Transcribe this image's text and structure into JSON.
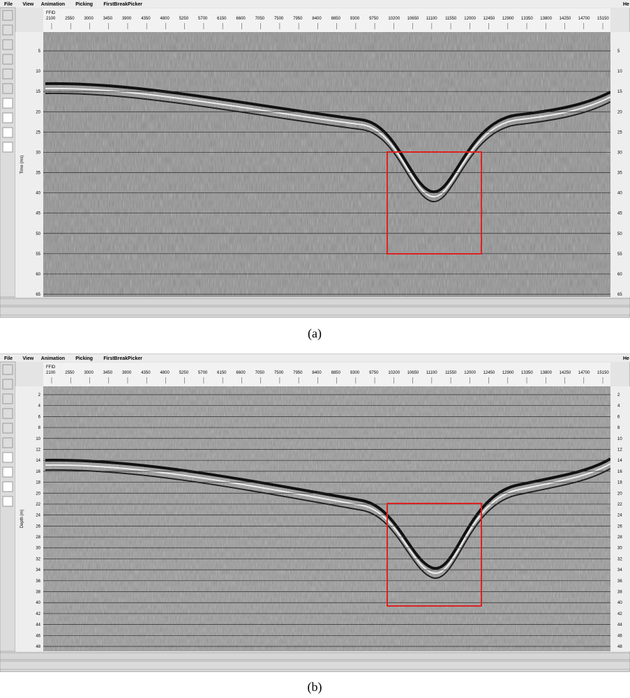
{
  "panels": [
    {
      "menu": [
        "File",
        "View",
        "Animation",
        "Picking",
        "FirstBreakPicker"
      ],
      "menu_right": "He",
      "x_axis_label": "FFID",
      "x_ticks": [
        "2100",
        "2550",
        "3000",
        "3450",
        "3900",
        "4350",
        "4800",
        "5250",
        "5700",
        "6150",
        "6600",
        "7050",
        "7500",
        "7950",
        "8400",
        "8850",
        "9300",
        "9750",
        "10200",
        "10650",
        "11100",
        "11550",
        "12000",
        "12450",
        "12900",
        "13350",
        "13800",
        "14250",
        "14700",
        "15150"
      ],
      "y_axis_label": "Time (ms)",
      "y_ticks": [
        "5",
        "10",
        "15",
        "20",
        "25",
        "30",
        "35",
        "40",
        "45",
        "50",
        "55",
        "60",
        "65"
      ],
      "caption": "(a)"
    },
    {
      "menu": [
        "File",
        "View",
        "Animation",
        "Picking",
        "FirstBreakPicker"
      ],
      "menu_right": "He",
      "x_axis_label": "FFID",
      "x_ticks": [
        "2100",
        "2550",
        "3000",
        "3450",
        "3900",
        "4350",
        "4800",
        "5250",
        "5700",
        "6150",
        "6600",
        "7050",
        "7500",
        "7950",
        "8400",
        "8850",
        "9300",
        "9750",
        "10200",
        "10650",
        "11100",
        "11550",
        "12000",
        "12450",
        "12900",
        "13350",
        "13800",
        "14250",
        "14700",
        "15150"
      ],
      "y_axis_label": "Depth (m)",
      "y_ticks": [
        "2",
        "4",
        "6",
        "8",
        "10",
        "12",
        "14",
        "16",
        "18",
        "20",
        "22",
        "24",
        "26",
        "28",
        "30",
        "32",
        "34",
        "36",
        "38",
        "40",
        "42",
        "44",
        "46",
        "48"
      ],
      "caption": "(b)"
    }
  ]
}
